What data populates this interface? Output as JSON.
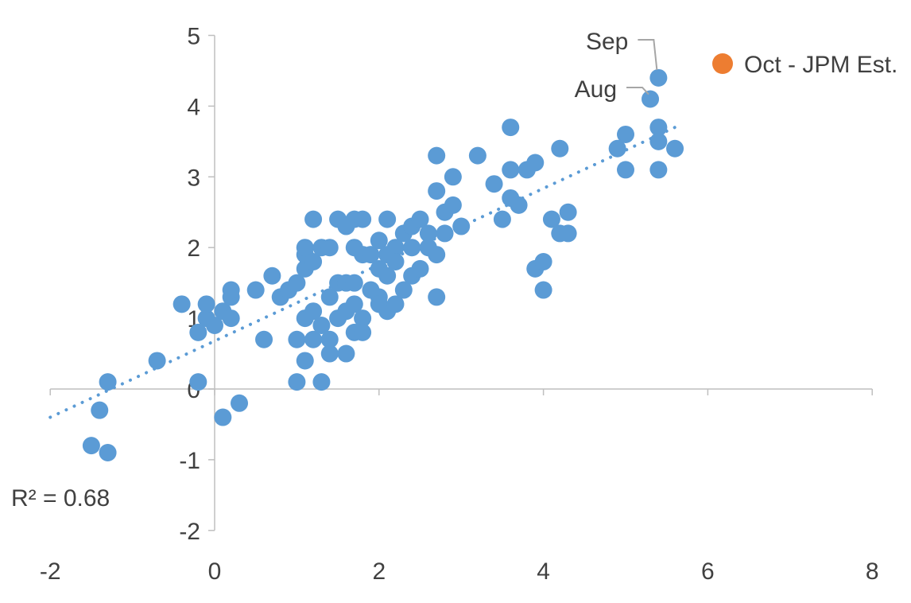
{
  "chart_data": {
    "type": "scatter",
    "xlim": [
      -2,
      8
    ],
    "ylim": [
      -2,
      5
    ],
    "x_ticks": [
      -2,
      0,
      2,
      4,
      6,
      8
    ],
    "y_ticks": [
      -2,
      -1,
      0,
      1,
      2,
      3,
      4,
      5
    ],
    "grid": false,
    "legend_position": "top-right",
    "series": [
      {
        "name": "",
        "color": "#5b9bd5",
        "points": [
          [
            -1.5,
            -0.8
          ],
          [
            -1.3,
            -0.9
          ],
          [
            -1.4,
            -0.3
          ],
          [
            -1.3,
            0.1
          ],
          [
            -0.7,
            0.4
          ],
          [
            -0.4,
            1.2
          ],
          [
            -0.2,
            0.8
          ],
          [
            -0.2,
            0.1
          ],
          [
            -0.1,
            1.0
          ],
          [
            -0.1,
            1.2
          ],
          [
            0.0,
            0.9
          ],
          [
            0.1,
            1.1
          ],
          [
            0.2,
            1.0
          ],
          [
            0.2,
            1.3
          ],
          [
            0.2,
            1.4
          ],
          [
            0.1,
            -0.4
          ],
          [
            0.3,
            -0.2
          ],
          [
            0.5,
            1.4
          ],
          [
            0.6,
            0.7
          ],
          [
            0.7,
            1.6
          ],
          [
            0.8,
            1.3
          ],
          [
            0.9,
            1.4
          ],
          [
            1.0,
            1.5
          ],
          [
            1.0,
            0.7
          ],
          [
            1.0,
            0.1
          ],
          [
            1.1,
            0.4
          ],
          [
            1.1,
            1.0
          ],
          [
            1.1,
            1.7
          ],
          [
            1.1,
            1.9
          ],
          [
            1.1,
            2.0
          ],
          [
            1.2,
            1.8
          ],
          [
            1.2,
            2.4
          ],
          [
            1.2,
            1.1
          ],
          [
            1.2,
            0.7
          ],
          [
            1.3,
            0.9
          ],
          [
            1.3,
            2.0
          ],
          [
            1.3,
            0.1
          ],
          [
            1.4,
            2.0
          ],
          [
            1.4,
            0.5
          ],
          [
            1.4,
            0.7
          ],
          [
            1.4,
            1.3
          ],
          [
            1.5,
            1.5
          ],
          [
            1.5,
            1.0
          ],
          [
            1.5,
            2.4
          ],
          [
            1.6,
            2.3
          ],
          [
            1.6,
            1.5
          ],
          [
            1.6,
            1.1
          ],
          [
            1.6,
            0.5
          ],
          [
            1.7,
            2.0
          ],
          [
            1.7,
            1.5
          ],
          [
            1.7,
            1.2
          ],
          [
            1.7,
            0.8
          ],
          [
            1.7,
            2.4
          ],
          [
            1.8,
            2.4
          ],
          [
            1.8,
            1.9
          ],
          [
            1.8,
            1.0
          ],
          [
            1.8,
            0.8
          ],
          [
            1.9,
            1.4
          ],
          [
            1.9,
            1.9
          ],
          [
            2.0,
            2.1
          ],
          [
            2.0,
            1.7
          ],
          [
            2.0,
            1.3
          ],
          [
            2.0,
            1.2
          ],
          [
            2.1,
            2.4
          ],
          [
            2.1,
            1.9
          ],
          [
            2.1,
            1.6
          ],
          [
            2.1,
            1.1
          ],
          [
            2.2,
            2.0
          ],
          [
            2.2,
            1.8
          ],
          [
            2.2,
            1.2
          ],
          [
            2.3,
            2.2
          ],
          [
            2.3,
            1.4
          ],
          [
            2.4,
            2.0
          ],
          [
            2.4,
            2.3
          ],
          [
            2.4,
            1.6
          ],
          [
            2.5,
            2.4
          ],
          [
            2.5,
            1.7
          ],
          [
            2.6,
            2.2
          ],
          [
            2.6,
            2.0
          ],
          [
            2.7,
            3.3
          ],
          [
            2.7,
            2.8
          ],
          [
            2.7,
            1.9
          ],
          [
            2.7,
            1.3
          ],
          [
            2.8,
            2.5
          ],
          [
            2.8,
            2.2
          ],
          [
            2.9,
            3.0
          ],
          [
            2.9,
            2.6
          ],
          [
            3.0,
            2.3
          ],
          [
            3.2,
            3.3
          ],
          [
            3.4,
            2.9
          ],
          [
            3.5,
            2.4
          ],
          [
            3.6,
            3.7
          ],
          [
            3.6,
            3.1
          ],
          [
            3.6,
            2.7
          ],
          [
            3.7,
            2.6
          ],
          [
            3.8,
            3.1
          ],
          [
            3.9,
            3.2
          ],
          [
            3.9,
            1.7
          ],
          [
            4.0,
            1.8
          ],
          [
            4.0,
            1.4
          ],
          [
            4.1,
            2.4
          ],
          [
            4.2,
            3.4
          ],
          [
            4.2,
            2.2
          ],
          [
            4.3,
            2.5
          ],
          [
            4.3,
            2.2
          ],
          [
            4.9,
            3.4
          ],
          [
            5.0,
            3.6
          ],
          [
            5.0,
            3.1
          ],
          [
            5.3,
            4.1
          ],
          [
            5.4,
            4.4
          ],
          [
            5.4,
            3.7
          ],
          [
            5.4,
            3.5
          ],
          [
            5.4,
            3.1
          ],
          [
            5.6,
            3.4
          ]
        ]
      },
      {
        "name": "Oct - JPM Est.",
        "color": "#ed7d31",
        "points": []
      }
    ],
    "trendline": {
      "color": "#5b9bd5",
      "from": [
        -2.0,
        -0.4
      ],
      "to": [
        5.6,
        3.7
      ],
      "label": "R² = 0.68"
    },
    "annotations": [
      {
        "text": "Sep",
        "point": [
          5.4,
          4.4
        ]
      },
      {
        "text": "Aug",
        "point": [
          5.3,
          4.1
        ]
      }
    ]
  }
}
